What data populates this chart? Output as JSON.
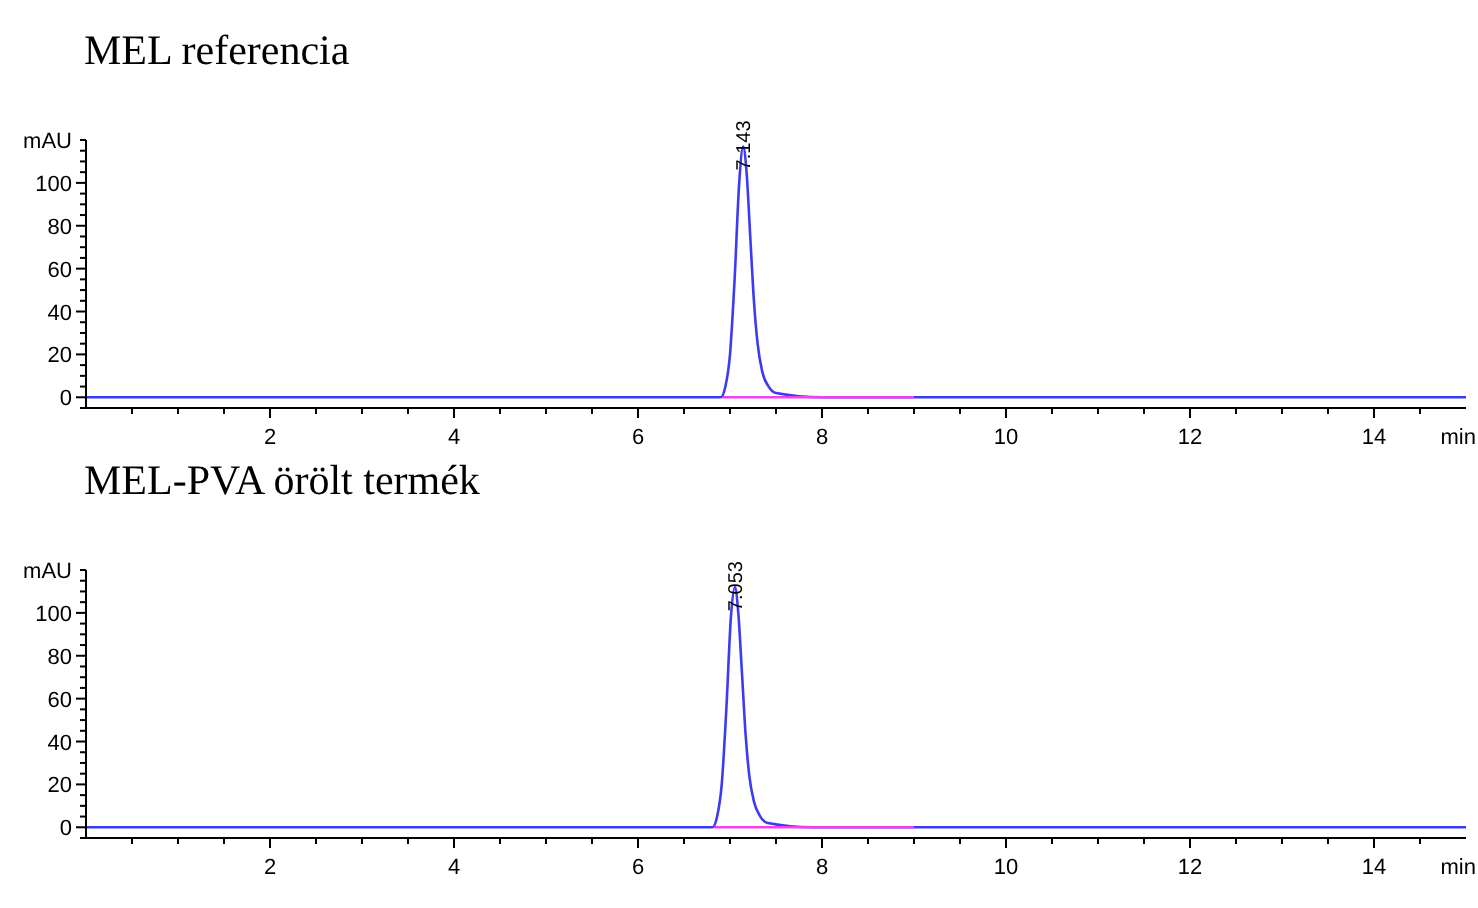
{
  "chart_data": [
    {
      "type": "line",
      "title": "MEL referencia",
      "xlabel": "min",
      "ylabel": "mAU",
      "xlim": [
        0,
        15
      ],
      "ylim": [
        -5,
        120
      ],
      "xticks": [
        {
          "value": 0.5,
          "label": null
        },
        {
          "value": 1,
          "label": null
        },
        {
          "value": 1.5,
          "label": null
        },
        2,
        {
          "value": 2.5,
          "label": null
        },
        {
          "value": 3,
          "label": null
        },
        {
          "value": 3.5,
          "label": null
        },
        4,
        {
          "value": 4.5,
          "label": null
        },
        {
          "value": 5,
          "label": null
        },
        {
          "value": 5.5,
          "label": null
        },
        6,
        {
          "value": 6.5,
          "label": null
        },
        {
          "value": 7,
          "label": null
        },
        {
          "value": 7.5,
          "label": null
        },
        8,
        {
          "value": 8.5,
          "label": null
        },
        {
          "value": 9,
          "label": null
        },
        {
          "value": 9.5,
          "label": null
        },
        10,
        {
          "value": 10.5,
          "label": null
        },
        {
          "value": 11,
          "label": null
        },
        {
          "value": 11.5,
          "label": null
        },
        12,
        {
          "value": 12.5,
          "label": null
        },
        {
          "value": 13,
          "label": null
        },
        {
          "value": 13.5,
          "label": null
        },
        14,
        {
          "value": 14.5,
          "label": null
        }
      ],
      "yticks": [
        {
          "value": -5,
          "label": null
        },
        0,
        {
          "value": 5,
          "label": null
        },
        {
          "value": 10,
          "label": null
        },
        {
          "value": 15,
          "label": null
        },
        20,
        {
          "value": 25,
          "label": null
        },
        {
          "value": 30,
          "label": null
        },
        {
          "value": 35,
          "label": null
        },
        40,
        {
          "value": 45,
          "label": null
        },
        {
          "value": 50,
          "label": null
        },
        {
          "value": 55,
          "label": null
        },
        60,
        {
          "value": 65,
          "label": null
        },
        {
          "value": 70,
          "label": null
        },
        {
          "value": 75,
          "label": null
        },
        80,
        {
          "value": 85,
          "label": null
        },
        {
          "value": 90,
          "label": null
        },
        {
          "value": 95,
          "label": null
        },
        100,
        {
          "value": 105,
          "label": null
        },
        {
          "value": 110,
          "label": null
        },
        {
          "value": 115,
          "label": null
        },
        {
          "value": 120,
          "label": null
        }
      ],
      "series": [
        {
          "color": "#3b3bf5",
          "x": [
            0,
            6.9,
            6.95,
            7.0,
            7.05,
            7.1,
            7.143,
            7.18,
            7.22,
            7.26,
            7.3,
            7.35,
            7.42,
            7.5,
            8.0,
            15
          ],
          "values": [
            0,
            0,
            5,
            20,
            55,
            100,
            117,
            105,
            75,
            45,
            25,
            12,
            5,
            2,
            0,
            0
          ]
        },
        {
          "color": "#f040f0",
          "x": [
            6.92,
            9.0
          ],
          "values": [
            0,
            0
          ]
        }
      ],
      "annotations": [
        {
          "text": "7.143",
          "x": 7.143,
          "y": 117
        }
      ],
      "grid": false
    },
    {
      "type": "line",
      "title": "MEL-PVA örölt termék",
      "xlabel": "min",
      "ylabel": "mAU",
      "xlim": [
        0,
        15
      ],
      "ylim": [
        -5,
        120
      ],
      "xticks": [
        {
          "value": 0.5,
          "label": null
        },
        {
          "value": 1,
          "label": null
        },
        {
          "value": 1.5,
          "label": null
        },
        2,
        {
          "value": 2.5,
          "label": null
        },
        {
          "value": 3,
          "label": null
        },
        {
          "value": 3.5,
          "label": null
        },
        4,
        {
          "value": 4.5,
          "label": null
        },
        {
          "value": 5,
          "label": null
        },
        {
          "value": 5.5,
          "label": null
        },
        6,
        {
          "value": 6.5,
          "label": null
        },
        {
          "value": 7,
          "label": null
        },
        {
          "value": 7.5,
          "label": null
        },
        8,
        {
          "value": 8.5,
          "label": null
        },
        {
          "value": 9,
          "label": null
        },
        {
          "value": 9.5,
          "label": null
        },
        10,
        {
          "value": 10.5,
          "label": null
        },
        {
          "value": 11,
          "label": null
        },
        {
          "value": 11.5,
          "label": null
        },
        12,
        {
          "value": 12.5,
          "label": null
        },
        {
          "value": 13,
          "label": null
        },
        {
          "value": 13.5,
          "label": null
        },
        14,
        {
          "value": 14.5,
          "label": null
        }
      ],
      "yticks": [
        {
          "value": -5,
          "label": null
        },
        0,
        {
          "value": 5,
          "label": null
        },
        {
          "value": 10,
          "label": null
        },
        {
          "value": 15,
          "label": null
        },
        20,
        {
          "value": 25,
          "label": null
        },
        {
          "value": 30,
          "label": null
        },
        {
          "value": 35,
          "label": null
        },
        40,
        {
          "value": 45,
          "label": null
        },
        {
          "value": 50,
          "label": null
        },
        {
          "value": 55,
          "label": null
        },
        60,
        {
          "value": 65,
          "label": null
        },
        {
          "value": 70,
          "label": null
        },
        {
          "value": 75,
          "label": null
        },
        80,
        {
          "value": 85,
          "label": null
        },
        {
          "value": 90,
          "label": null
        },
        {
          "value": 95,
          "label": null
        },
        100,
        {
          "value": 105,
          "label": null
        },
        {
          "value": 110,
          "label": null
        },
        {
          "value": 115,
          "label": null
        },
        {
          "value": 120,
          "label": null
        }
      ],
      "series": [
        {
          "color": "#3b3bf5",
          "x": [
            0,
            6.81,
            6.86,
            6.91,
            6.96,
            7.01,
            7.053,
            7.09,
            7.13,
            7.17,
            7.21,
            7.26,
            7.33,
            7.41,
            7.9,
            15
          ],
          "values": [
            0,
            0,
            5,
            20,
            55,
            98,
            112,
            100,
            72,
            43,
            24,
            12,
            5,
            2,
            0,
            0
          ]
        },
        {
          "color": "#f040f0",
          "x": [
            6.83,
            9.0
          ],
          "values": [
            0,
            0
          ]
        }
      ],
      "annotations": [
        {
          "text": "7.053",
          "x": 7.053,
          "y": 112
        }
      ],
      "grid": false
    }
  ]
}
